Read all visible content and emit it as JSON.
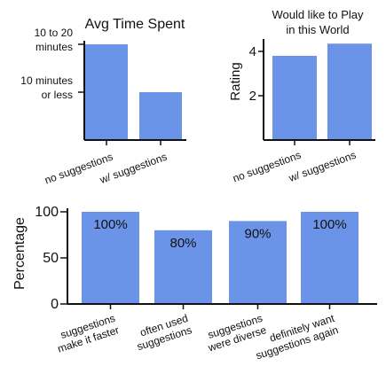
{
  "colors": {
    "bar": "#6b93e8",
    "axis": "#111111"
  },
  "chart_data": [
    {
      "type": "bar",
      "title": "Avg Time Spent",
      "categories": [
        "no suggestions",
        "w/ suggestions"
      ],
      "values": [
        2,
        1
      ],
      "ylim": [
        0,
        2
      ],
      "ytick_values": [
        2,
        1
      ],
      "ytick_labels": [
        "10 to 20\nminutes",
        "10 minutes\nor less"
      ],
      "xlabel": "",
      "ylabel": "",
      "grid": false
    },
    {
      "type": "bar",
      "title": "Would like to Play\nin this World",
      "categories": [
        "no suggestions",
        "w/ suggestions"
      ],
      "values": [
        3.8,
        4.35
      ],
      "ylim": [
        0,
        4.4
      ],
      "ytick_values": [
        2,
        4
      ],
      "ytick_labels": [
        "2",
        "4"
      ],
      "xlabel": "",
      "ylabel": "Rating",
      "grid": false
    },
    {
      "type": "bar",
      "title": "",
      "categories": [
        "suggestions\nmake it faster",
        "often used\nsuggestions",
        "suggestions\nwere diverse",
        "definitely want\nsuggestions again"
      ],
      "values": [
        100,
        80,
        90,
        100
      ],
      "data_labels": [
        "100%",
        "80%",
        "90%",
        "100%"
      ],
      "ylim": [
        0,
        100
      ],
      "ytick_values": [
        0,
        50,
        100
      ],
      "ytick_labels": [
        "0",
        "50",
        "100"
      ],
      "xlabel": "",
      "ylabel": "Percentage",
      "grid": false
    }
  ]
}
